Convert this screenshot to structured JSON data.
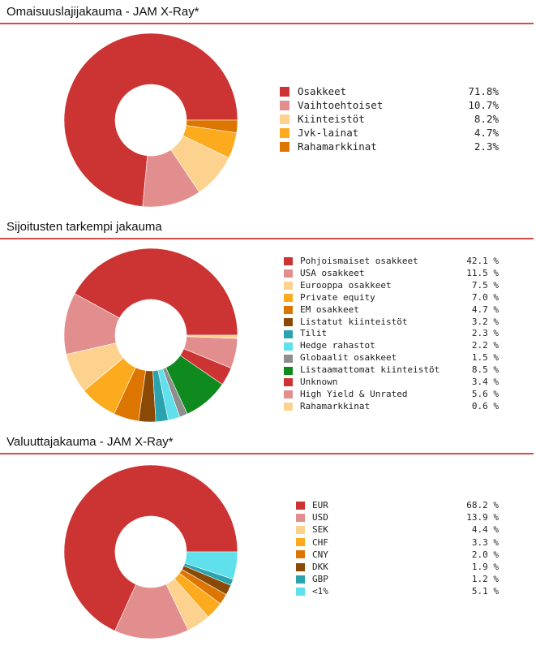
{
  "chart_data": [
    {
      "type": "pie",
      "title": "Omaisuuslajijakauma - JAM X-Ray*",
      "value_suffix": "%",
      "slices": [
        {
          "label": "Osakkeet",
          "value": 71.8,
          "display": "71.8%",
          "color": "#cc3333"
        },
        {
          "label": "Vaihtoehtoiset",
          "value": 10.7,
          "display": "10.7%",
          "color": "#e38e8e"
        },
        {
          "label": "Kiinteistöt",
          "value": 8.2,
          "display": "8.2%",
          "color": "#fdd28f"
        },
        {
          "label": "Jvk-lainat",
          "value": 4.7,
          "display": "4.7%",
          "color": "#fbab1d"
        },
        {
          "label": "Rahamarkkinat",
          "value": 2.3,
          "display": "2.3%",
          "color": "#dd7600"
        }
      ]
    },
    {
      "type": "pie",
      "title": "Sijoitusten tarkempi jakauma",
      "slices": [
        {
          "label": "Pohjoismaiset osakkeet",
          "value": 42.1,
          "display": "42.1 %",
          "color": "#cc3333"
        },
        {
          "label": "USA osakkeet",
          "value": 11.5,
          "display": "11.5 %",
          "color": "#e38e8e"
        },
        {
          "label": "Eurooppa osakkeet",
          "value": 7.5,
          "display": "7.5 %",
          "color": "#fdd28f"
        },
        {
          "label": "Private equity",
          "value": 7.0,
          "display": "7.0 %",
          "color": "#fbab1d"
        },
        {
          "label": "EM osakkeet",
          "value": 4.7,
          "display": "4.7 %",
          "color": "#dd7600"
        },
        {
          "label": "Listatut kiinteistöt",
          "value": 3.2,
          "display": "3.2 %",
          "color": "#8a4a06"
        },
        {
          "label": "Tilit",
          "value": 2.3,
          "display": "2.3 %",
          "color": "#2aa3ae"
        },
        {
          "label": "Hedge rahastot",
          "value": 2.2,
          "display": "2.2 %",
          "color": "#5fe0ea"
        },
        {
          "label": "Globaalit osakkeet",
          "value": 1.5,
          "display": "1.5 %",
          "color": "#8e8e8e"
        },
        {
          "label": "Listaamattomat kiinteistöt",
          "value": 8.5,
          "display": "8.5 %",
          "color": "#0e8a1e"
        },
        {
          "label": "Unknown",
          "value": 3.4,
          "display": "3.4 %",
          "color": "#cc3333"
        },
        {
          "label": "High Yield & Unrated",
          "value": 5.6,
          "display": "5.6 %",
          "color": "#e38e8e"
        },
        {
          "label": "Rahamarkkinat",
          "value": 0.6,
          "display": "0.6 %",
          "color": "#fdd28f"
        }
      ]
    },
    {
      "type": "pie",
      "title": "Valuuttajakauma - JAM X-Ray*",
      "slices": [
        {
          "label": "EUR",
          "value": 68.2,
          "display": "68.2 %",
          "color": "#cc3333"
        },
        {
          "label": "USD",
          "value": 13.9,
          "display": "13.9 %",
          "color": "#e38e8e"
        },
        {
          "label": "SEK",
          "value": 4.4,
          "display": "4.4 %",
          "color": "#fdd28f"
        },
        {
          "label": "CHF",
          "value": 3.3,
          "display": "3.3 %",
          "color": "#fbab1d"
        },
        {
          "label": "CNY",
          "value": 2.0,
          "display": "2.0 %",
          "color": "#dd7600"
        },
        {
          "label": "DKK",
          "value": 1.9,
          "display": "1.9 %",
          "color": "#8a4a06"
        },
        {
          "label": "GBP",
          "value": 1.2,
          "display": "1.2 %",
          "color": "#2aa3ae"
        },
        {
          "label": "<1%",
          "value": 5.1,
          "display": "5.1 %",
          "color": "#5fe0ea"
        }
      ]
    }
  ]
}
